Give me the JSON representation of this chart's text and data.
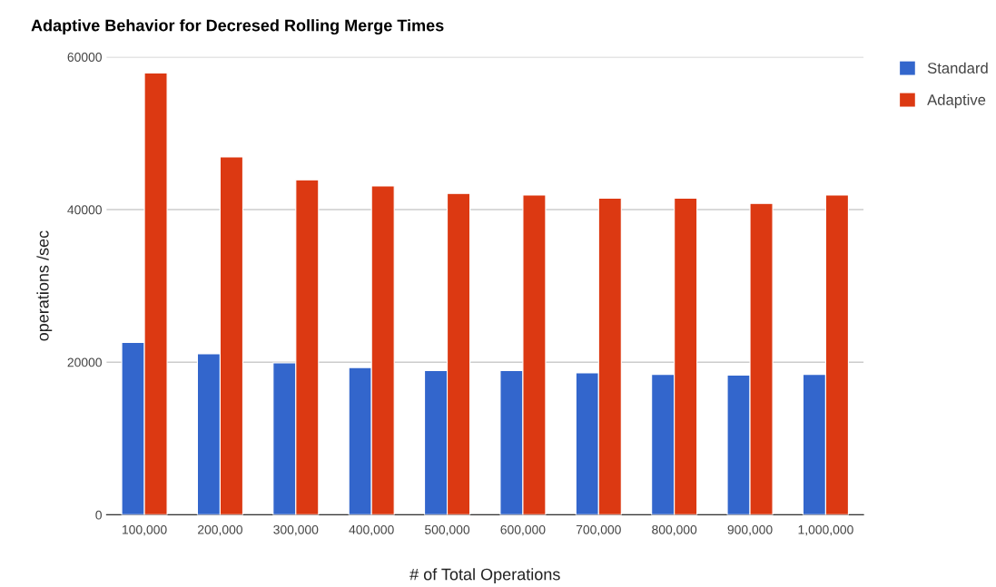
{
  "chart_data": {
    "type": "bar",
    "title": "Adaptive Behavior for Decresed Rolling Merge Times",
    "xlabel": "# of Total Operations",
    "ylabel": "operations /sec",
    "categories": [
      "100,000",
      "200,000",
      "300,000",
      "400,000",
      "500,000",
      "600,000",
      "700,000",
      "800,000",
      "900,000",
      "1,000,000"
    ],
    "series": [
      {
        "name": "Standard",
        "color": "#3366cc",
        "values": [
          22600,
          21100,
          19900,
          19300,
          18900,
          18900,
          18600,
          18400,
          18300,
          18400
        ]
      },
      {
        "name": "Adaptive",
        "color": "#dc3912",
        "values": [
          57900,
          46900,
          43900,
          43100,
          42100,
          41900,
          41500,
          41500,
          40800,
          41900
        ]
      }
    ],
    "ylim": [
      0,
      60000
    ],
    "yticks": [
      0,
      20000,
      40000,
      60000
    ],
    "grid": "y",
    "legend": "top right"
  }
}
